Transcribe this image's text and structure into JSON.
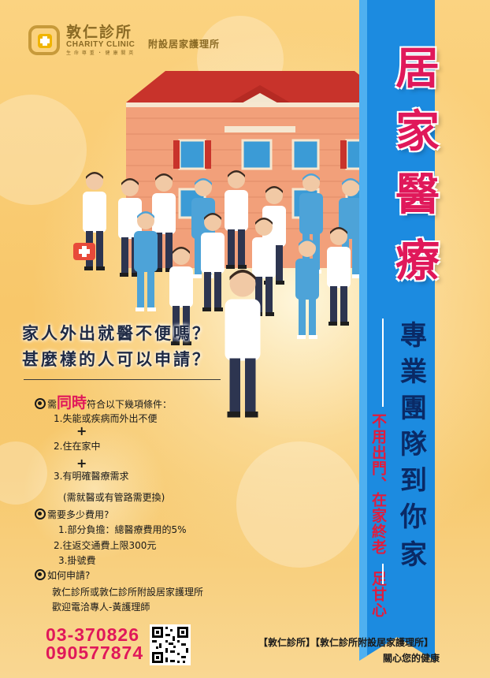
{
  "logo": {
    "name_cn": "敦仁診所",
    "name_en": "CHARITY CLINIC",
    "slogan": "生 命 尊 重 ・ 健 康 關 英",
    "sub": "附設居家護理所"
  },
  "title_chars": [
    "居",
    "家",
    "醫",
    "療"
  ],
  "team_chars": [
    "專",
    "業",
    "團",
    "隊",
    "到",
    "你",
    "家"
  ],
  "tagline": "不用出門、在家終老　足甘心",
  "questions": [
    "家人外出就醫不便嗎？",
    "甚麼樣的人可以申請？"
  ],
  "conditions": {
    "intro_prefix": "需",
    "intro_highlight": "同時",
    "intro_suffix": "符合以下幾項條件：",
    "items": [
      "1.失能或疾病而外出不便",
      "2.住在家中",
      "3.有明確醫療需求"
    ],
    "note": "(需就醫或有管路需更換)"
  },
  "costs": {
    "heading": "需要多少費用?",
    "items": [
      "1.部分負擔：總醫療費用的5%",
      "2.往返交通費上限300元",
      "3.掛號費"
    ]
  },
  "apply": {
    "heading": "如何申請?",
    "lines": [
      "敦仁診所或敦仁診所附設居家護理所",
      "歡迎電洽專人-黃護理師"
    ]
  },
  "phones": [
    "03-370826",
    "090577874"
  ],
  "footer": {
    "line1": "【敦仁診所】【敦仁診所附設居家護理所】",
    "line2": "關心您的健康"
  },
  "colors": {
    "background": "#f8c76a",
    "banner": "#1c8be0",
    "title": "#e0185a",
    "team_text": "#0a2a66",
    "tagline": "#e21b3c"
  },
  "icons": [
    "clinic-logo-icon",
    "qr-code-icon",
    "house-illustration",
    "medical-staff-illustration"
  ]
}
